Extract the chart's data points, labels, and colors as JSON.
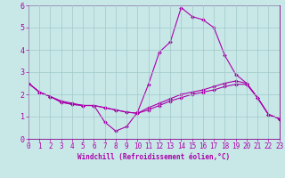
{
  "xlabel": "Windchill (Refroidissement éolien,°C)",
  "line1": {
    "x": [
      0,
      1,
      2,
      3,
      4,
      5,
      6,
      7,
      8,
      9,
      10,
      11,
      12,
      13,
      14,
      15,
      16,
      17,
      18,
      19,
      20,
      21,
      22,
      23
    ],
    "y": [
      2.5,
      2.1,
      1.9,
      1.7,
      1.6,
      1.5,
      1.5,
      0.75,
      0.35,
      0.55,
      1.2,
      2.45,
      3.9,
      4.35,
      5.9,
      5.5,
      5.35,
      5.0,
      3.75,
      2.9,
      2.5,
      1.85,
      1.1,
      0.9
    ]
  },
  "line2": {
    "x": [
      0,
      1,
      2,
      3,
      4,
      5,
      6,
      7,
      8,
      9,
      10,
      11,
      12,
      13,
      14,
      15,
      16,
      17,
      18,
      19,
      20,
      21,
      22,
      23
    ],
    "y": [
      2.5,
      2.1,
      1.9,
      1.65,
      1.55,
      1.5,
      1.5,
      1.4,
      1.3,
      1.2,
      1.15,
      1.4,
      1.6,
      1.8,
      2.0,
      2.1,
      2.2,
      2.35,
      2.5,
      2.6,
      2.5,
      1.85,
      1.1,
      0.9
    ]
  },
  "line3": {
    "x": [
      0,
      1,
      2,
      3,
      4,
      5,
      6,
      7,
      8,
      9,
      10,
      11,
      12,
      13,
      14,
      15,
      16,
      17,
      18,
      19,
      20,
      21,
      22,
      23
    ],
    "y": [
      2.5,
      2.1,
      1.9,
      1.65,
      1.55,
      1.5,
      1.5,
      1.4,
      1.3,
      1.2,
      1.15,
      1.3,
      1.5,
      1.7,
      1.85,
      2.0,
      2.1,
      2.2,
      2.35,
      2.45,
      2.45,
      1.85,
      1.1,
      0.9
    ]
  },
  "bg_color": "#c8e8e8",
  "grid_color": "#a0c8c8",
  "line_color": "#aa00aa",
  "axis_color": "#880088",
  "xlim": [
    0,
    23
  ],
  "ylim": [
    0,
    6
  ],
  "xticks": [
    0,
    1,
    2,
    3,
    4,
    5,
    6,
    7,
    8,
    9,
    10,
    11,
    12,
    13,
    14,
    15,
    16,
    17,
    18,
    19,
    20,
    21,
    22,
    23
  ],
  "yticks": [
    0,
    1,
    2,
    3,
    4,
    5,
    6
  ],
  "xlabel_fontsize": 5.5,
  "tick_fontsize": 5.5,
  "marker_size": 2.0,
  "linewidth": 0.8
}
